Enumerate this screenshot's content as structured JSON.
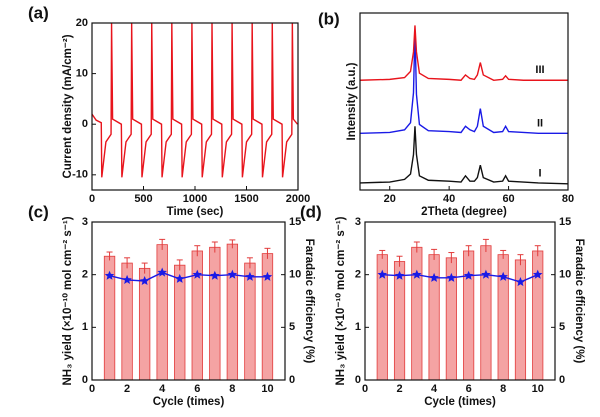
{
  "chart_data": [
    {
      "type": "line",
      "label": "(a)",
      "xlabel": "Time (sec)",
      "ylabel": "Current density (mA/cm⁻²)",
      "xlim": [
        0,
        2000
      ],
      "xticks": [
        0,
        500,
        1000,
        1500,
        2000
      ],
      "ylim": [
        -13,
        20
      ],
      "yticks": [
        -10,
        0,
        10,
        20
      ],
      "x": [
        0,
        40,
        90,
        95,
        135,
        185,
        190,
        200,
        285,
        290,
        330,
        380,
        385,
        395,
        480,
        485,
        525,
        575,
        580,
        590,
        675,
        680,
        720,
        770,
        775,
        785,
        870,
        875,
        915,
        965,
        970,
        980,
        1065,
        1070,
        1110,
        1160,
        1165,
        1175,
        1260,
        1265,
        1305,
        1355,
        1360,
        1370,
        1455,
        1460,
        1500,
        1550,
        1555,
        1565,
        1650,
        1655,
        1695,
        1745,
        1750,
        1760,
        1845,
        1850,
        1890,
        1940,
        1945,
        1955,
        1995
      ],
      "series": [
        {
          "color": "#e8141c",
          "values": [
            2,
            0.8,
            0.3,
            -10.5,
            -3.5,
            -2,
            20,
            1,
            0,
            -10.5,
            -3.5,
            -2,
            20,
            1,
            0,
            -10.5,
            -3.5,
            -2,
            20,
            1,
            0,
            -10.5,
            -3.5,
            -2,
            20,
            1,
            0,
            -10.5,
            -3.5,
            -2,
            20,
            1,
            0,
            -10.5,
            -3.5,
            -2,
            20,
            1,
            0,
            -10.5,
            -3.5,
            -2,
            20,
            1,
            0,
            -10.5,
            -3.5,
            -2,
            20,
            1,
            0,
            -10.5,
            -3.5,
            -2,
            20,
            1,
            0,
            -10.5,
            -3.5,
            -2,
            20,
            1,
            0
          ]
        }
      ]
    },
    {
      "type": "line",
      "label": "(b)",
      "xlabel": "2Theta (degree)",
      "ylabel": "Intensity (a.u.)",
      "xlim": [
        10,
        80
      ],
      "xticks": [
        20,
        40,
        60,
        80
      ],
      "ylim": [
        0,
        10
      ],
      "x": [
        10,
        20,
        25,
        27,
        28,
        28.5,
        29,
        30,
        33,
        40,
        44,
        45.5,
        47,
        48.5,
        49.5,
        50.5,
        51.5,
        55,
        58,
        59,
        60,
        65,
        70,
        80
      ],
      "series": [
        {
          "name": "I",
          "color": "#111111",
          "values": [
            0.4,
            0.45,
            0.6,
            0.9,
            2.0,
            3.6,
            2.0,
            0.8,
            0.55,
            0.5,
            0.45,
            0.8,
            0.5,
            0.5,
            0.7,
            1.4,
            0.7,
            0.45,
            0.5,
            0.8,
            0.5,
            0.45,
            0.4,
            0.35
          ]
        },
        {
          "name": "II",
          "color": "#1a1ae6",
          "values": [
            3.2,
            3.25,
            3.4,
            3.8,
            5.5,
            9.0,
            5.4,
            3.7,
            3.35,
            3.3,
            3.25,
            3.6,
            3.4,
            3.3,
            3.6,
            4.6,
            3.6,
            3.25,
            3.3,
            3.6,
            3.3,
            3.25,
            3.2,
            3.2
          ]
        },
        {
          "name": "III",
          "color": "#e8141c",
          "values": [
            6.2,
            6.25,
            6.35,
            6.7,
            7.8,
            9.3,
            7.8,
            6.6,
            6.3,
            6.25,
            6.2,
            6.5,
            6.3,
            6.25,
            6.5,
            7.2,
            6.5,
            6.2,
            6.25,
            6.45,
            6.25,
            6.2,
            6.2,
            6.2
          ]
        }
      ]
    },
    {
      "type": "bar",
      "label": "(c)",
      "xlabel": "Cycle (times)",
      "ylabel": "NH₃ yield (×10⁻¹⁰ mol cm⁻² s⁻¹)",
      "y2label": "Faradaic efficiency (%)",
      "xlim": [
        0,
        11
      ],
      "xticks": [
        0,
        2,
        4,
        6,
        8,
        10
      ],
      "ylim": [
        0,
        3
      ],
      "yticks": [
        0,
        1,
        2,
        3
      ],
      "y2lim": [
        0,
        15
      ],
      "y2ticks": [
        0,
        5,
        10,
        15
      ],
      "x": [
        1,
        2,
        3,
        4,
        5,
        6,
        7,
        8,
        9,
        10
      ],
      "series": [
        {
          "color": "#f4a3a3",
          "values": [
            2.35,
            2.22,
            2.12,
            2.57,
            2.18,
            2.45,
            2.52,
            2.58,
            2.22,
            2.4
          ],
          "errors": [
            0.08,
            0.1,
            0.1,
            0.1,
            0.1,
            0.1,
            0.1,
            0.08,
            0.1,
            0.1
          ]
        },
        {
          "color": "#1a1ae6",
          "axis": "y2",
          "marker": "star",
          "values": [
            9.9,
            9.5,
            9.4,
            10.2,
            9.6,
            10.0,
            9.9,
            10.0,
            9.8,
            9.8
          ]
        }
      ]
    },
    {
      "type": "bar",
      "label": "(d)",
      "xlabel": "Cycle (times)",
      "ylabel": "NH₃ yield (×10⁻¹⁰ mol cm⁻² s⁻¹)",
      "y2label": "Faradaic efficiency (%)",
      "xlim": [
        0,
        11
      ],
      "xticks": [
        0,
        2,
        4,
        6,
        8,
        10
      ],
      "ylim": [
        0,
        3
      ],
      "yticks": [
        0,
        1,
        2,
        3
      ],
      "y2lim": [
        0,
        15
      ],
      "y2ticks": [
        0,
        5,
        10,
        15
      ],
      "x": [
        1,
        2,
        3,
        4,
        5,
        6,
        7,
        8,
        9,
        10
      ],
      "series": [
        {
          "color": "#f4a3a3",
          "values": [
            2.38,
            2.25,
            2.52,
            2.38,
            2.32,
            2.45,
            2.55,
            2.38,
            2.28,
            2.45
          ],
          "errors": [
            0.08,
            0.1,
            0.1,
            0.1,
            0.1,
            0.1,
            0.12,
            0.08,
            0.1,
            0.1
          ]
        },
        {
          "color": "#1a1ae6",
          "axis": "y2",
          "marker": "star",
          "values": [
            10.0,
            9.9,
            10.0,
            9.7,
            9.7,
            9.9,
            10.0,
            9.8,
            9.3,
            10.0
          ]
        }
      ]
    }
  ]
}
